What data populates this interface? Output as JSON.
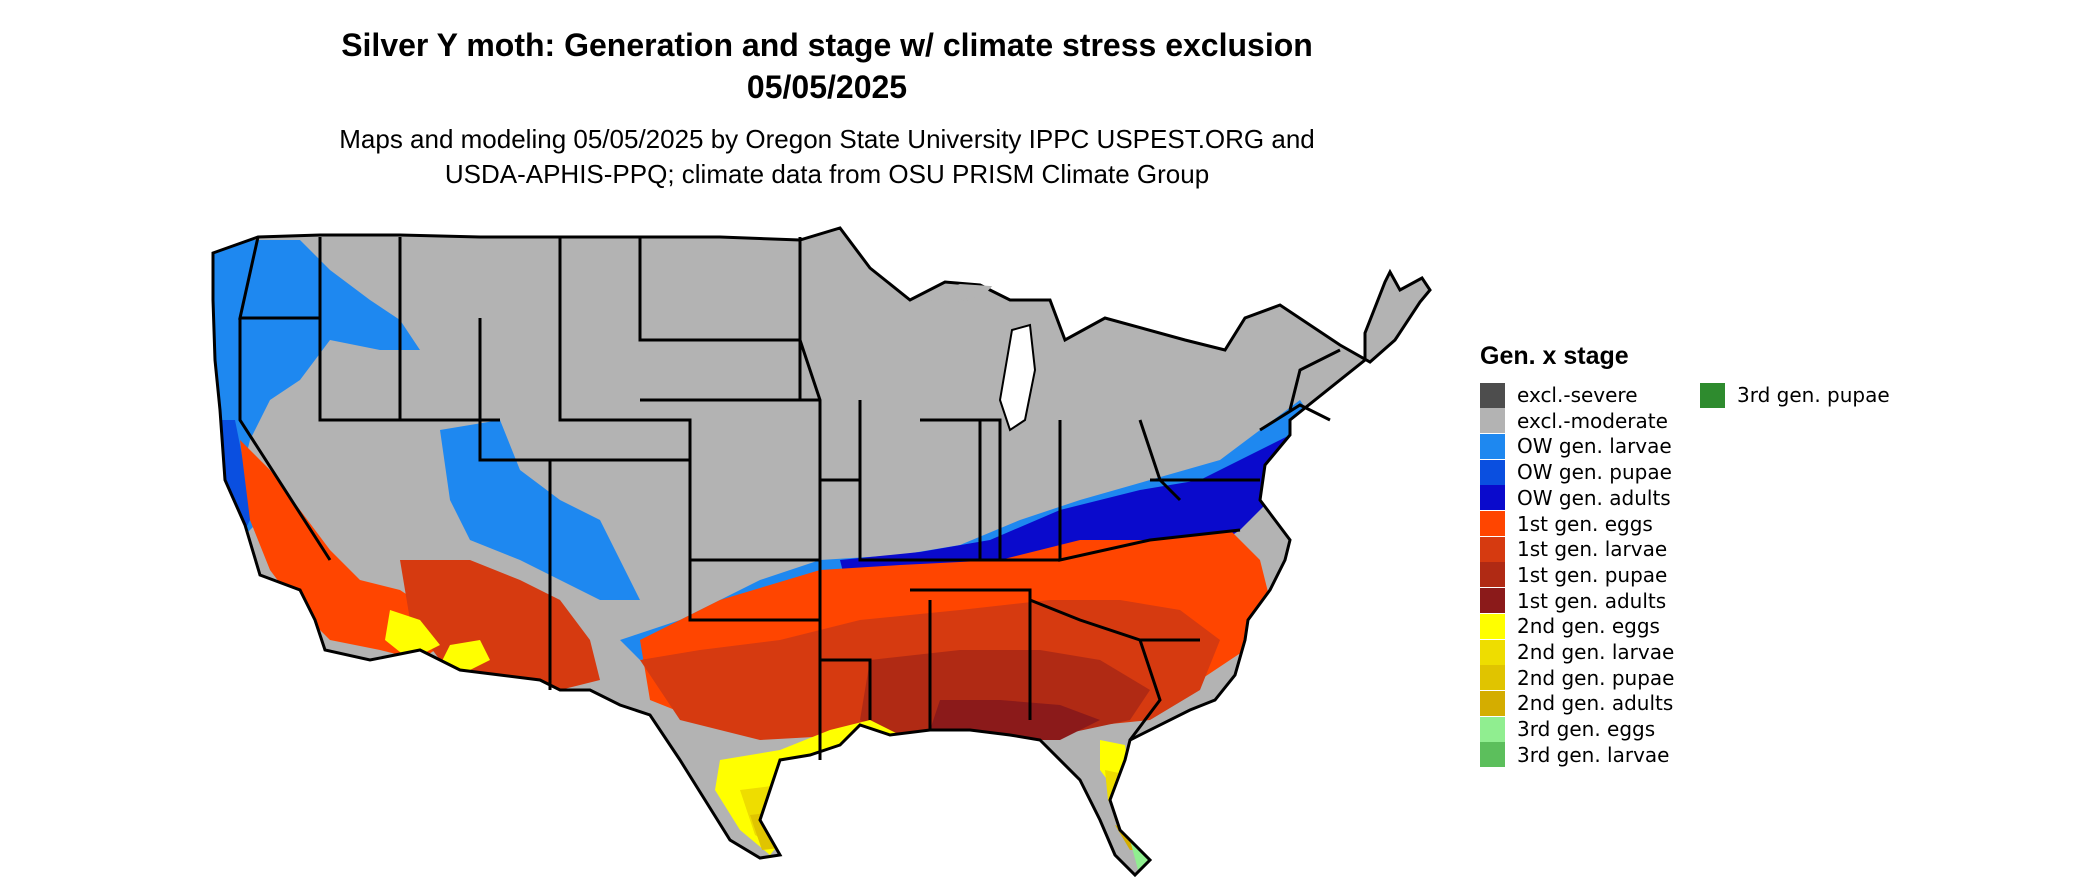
{
  "title_line1": "Silver Y moth: Generation and stage w/ climate stress exclusion",
  "title_line2": "05/05/2025",
  "subtitle_line1": "Maps and modeling 05/05/2025 by Oregon State University IPPC USPEST.ORG and",
  "subtitle_line2": "USDA-APHIS-PPQ; climate data from OSU PRISM Climate Group",
  "legend": {
    "title": "Gen. x stage",
    "items": [
      {
        "label": "excl.-severe",
        "color": "#4d4d4d"
      },
      {
        "label": "excl.-moderate",
        "color": "#b3b3b3"
      },
      {
        "label": "OW gen. larvae",
        "color": "#1e88f0"
      },
      {
        "label": "OW gen. pupae",
        "color": "#0a4fe0"
      },
      {
        "label": "OW gen. adults",
        "color": "#0a0acc"
      },
      {
        "label": "1st gen. eggs",
        "color": "#ff4500"
      },
      {
        "label": "1st gen. larvae",
        "color": "#d63a10"
      },
      {
        "label": "1st gen. pupae",
        "color": "#b02a14"
      },
      {
        "label": "1st gen. adults",
        "color": "#8b1a1a"
      },
      {
        "label": "2nd gen. eggs",
        "color": "#ffff00"
      },
      {
        "label": "2nd gen. larvae",
        "color": "#eedd00"
      },
      {
        "label": "2nd gen. pupae",
        "color": "#e0c400"
      },
      {
        "label": "2nd gen. adults",
        "color": "#d4ad00"
      },
      {
        "label": "3rd gen. eggs",
        "color": "#90ee90"
      },
      {
        "label": "3rd gen. larvae",
        "color": "#5cbf5c"
      },
      {
        "label": "3rd gen. pupae",
        "color": "#2e8b2e"
      }
    ]
  }
}
